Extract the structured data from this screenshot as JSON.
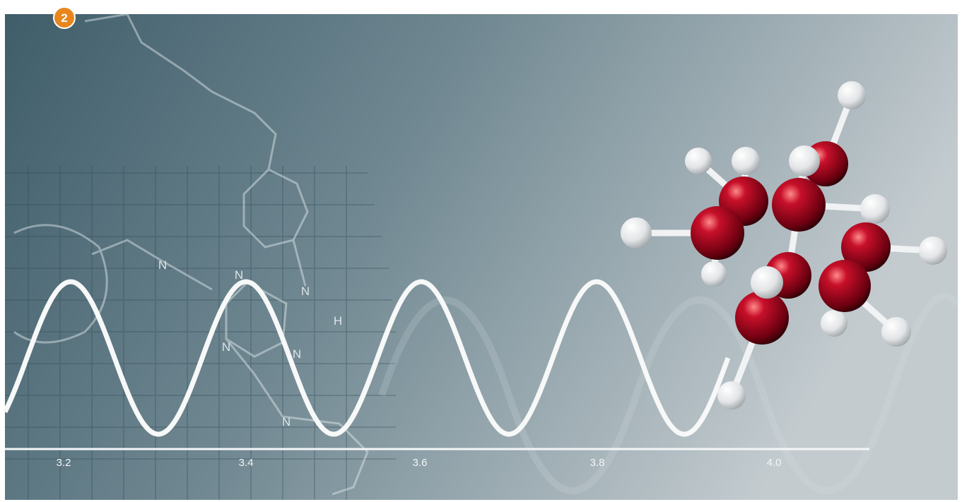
{
  "badge": "2",
  "axis": {
    "labels": [
      "3.2",
      "3.4",
      "3.6",
      "3.8",
      "4.0"
    ]
  },
  "structure_labels": [
    "N",
    "N",
    "H",
    "N",
    "N",
    "N",
    "N"
  ]
}
